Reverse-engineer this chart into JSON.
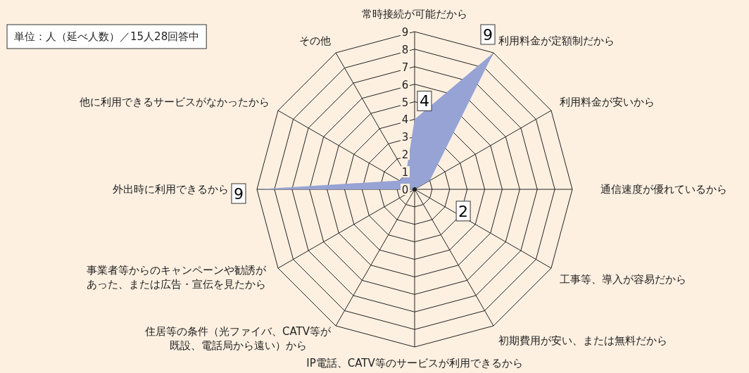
{
  "chart_data": {
    "type": "radar",
    "categories": [
      "常時接続が可能だから",
      "利用料金が定額制だから",
      "利用料金が安いから",
      "通信速度が優れているから",
      "工事等、導入が容易だから",
      "初期費用が安い、または無料だから",
      "IP電話、CATV等のサービスが利用できるから",
      "住居等の条件（光ファイバ、CATV等が既設、電話局から遠い）から",
      "事業者等からのキャンペーンや勧誘があった、または広告・宣伝を見たから",
      "外出時に利用できるから",
      "他に利用できるサービスがなかったから",
      "その他"
    ],
    "series": [
      {
        "color": "#96a3d4",
        "values": [
          4,
          9,
          1,
          0,
          2,
          0,
          0,
          0,
          0,
          9,
          1,
          1
        ],
        "value_labels": [
          "4",
          "9",
          null,
          null,
          "2",
          null,
          null,
          null,
          null,
          "9",
          null,
          null
        ]
      }
    ],
    "ylim": [
      0,
      9
    ],
    "yticks": [
      0,
      1,
      2,
      3,
      4,
      5,
      6,
      7,
      8,
      9
    ],
    "grid": true,
    "annotations": [
      "単位：人（延べ人数）／15人28回答中"
    ]
  }
}
